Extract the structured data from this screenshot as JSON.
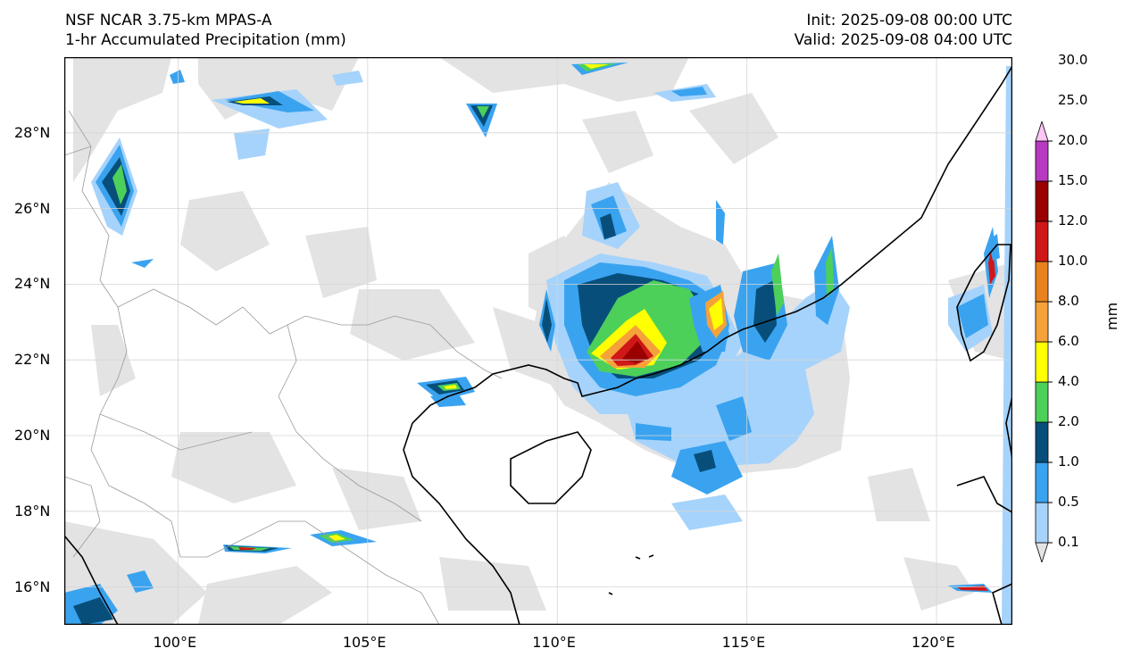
{
  "header": {
    "model": "NSF NCAR 3.75-km MPAS-A",
    "field": "1-hr Accumulated Precipitation (mm)",
    "init": "Init: 2025-09-08 00:00 UTC",
    "valid": "Valid: 2025-09-08 04:00 UTC"
  },
  "map": {
    "lon_range": [
      97,
      122
    ],
    "lat_range": [
      15,
      30
    ],
    "lon_ticks": [
      "100°E",
      "105°E",
      "110°E",
      "115°E",
      "120°E"
    ],
    "lon_values": [
      100,
      105,
      110,
      115,
      120
    ],
    "lat_ticks": [
      "28°N",
      "26°N",
      "24°N",
      "22°N",
      "20°N",
      "18°N",
      "16°N"
    ],
    "lat_values": [
      28,
      26,
      24,
      22,
      20,
      18,
      16
    ],
    "grid": true
  },
  "colorbar": {
    "unit": "mm",
    "levels": [
      "0.1",
      "0.5",
      "1.0",
      "2.0",
      "4.0",
      "6.0",
      "8.0",
      "10.0",
      "12.0",
      "15.0",
      "20.0",
      "25.0",
      "30.0"
    ],
    "colors": [
      "#e3e3e3",
      "#a6d3fb",
      "#3aa3f0",
      "#074f7a",
      "#4cd05a",
      "#ffff00",
      "#f5a23a",
      "#e8821e",
      "#d01818",
      "#9a0000",
      "#b83ac0",
      "#fdc6f6"
    ],
    "extend": "both"
  },
  "colors": {
    "coast": "#000000",
    "border": "#9a9a9a",
    "grid": "#d6d6d6"
  }
}
